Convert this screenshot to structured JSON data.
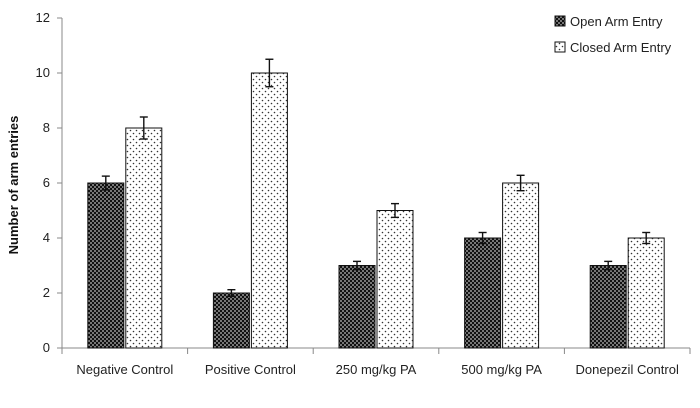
{
  "chart_data": {
    "type": "bar",
    "title": "",
    "xlabel": "",
    "ylabel": "Number of arm entries",
    "ylim": [
      0,
      12
    ],
    "yticks": [
      0,
      2,
      4,
      6,
      8,
      10,
      12
    ],
    "grid": false,
    "legend_position": "top-right",
    "categories": [
      "Negative Control",
      "Positive Control",
      "250 mg/kg PA",
      "500 mg/kg PA",
      "Donepezil Control"
    ],
    "series": [
      {
        "name": "Open Arm Entry",
        "pattern": "dense-checker",
        "color": "#1a1a1a",
        "values": [
          6,
          2,
          3,
          4,
          3
        ],
        "errors": [
          0.25,
          0.12,
          0.15,
          0.2,
          0.15
        ]
      },
      {
        "name": "Closed Arm Entry",
        "pattern": "sparse-dots",
        "color": "#ffffff",
        "values": [
          8,
          10,
          5,
          6,
          4
        ],
        "errors": [
          0.4,
          0.5,
          0.25,
          0.28,
          0.2
        ]
      }
    ]
  }
}
